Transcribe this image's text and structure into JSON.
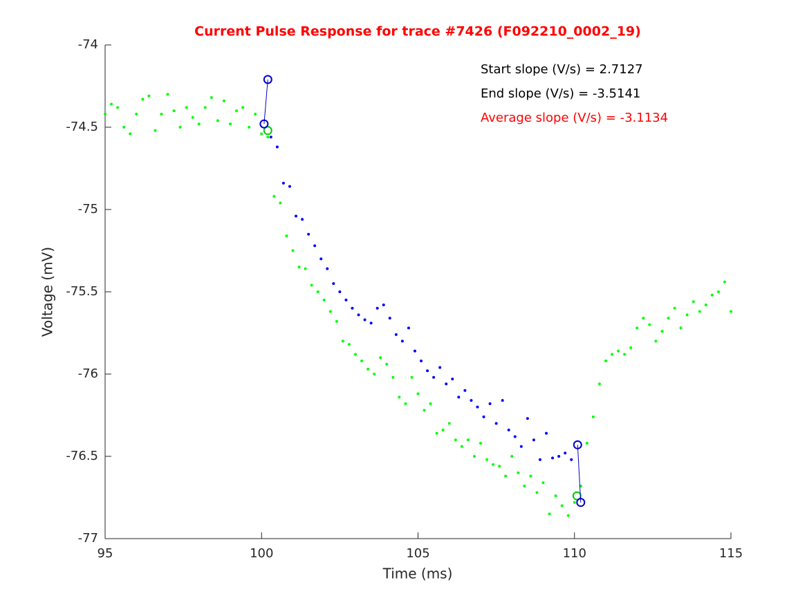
{
  "chart_data": {
    "type": "scatter",
    "title": "Current Pulse Response for trace #7426 (F092210_0002_19)",
    "title_color": "#ff0000",
    "x_label": "Time (ms)",
    "y_label": "Voltage (mV)",
    "xlim": [
      95,
      115
    ],
    "ylim": [
      -77,
      -74
    ],
    "xticks": [
      95,
      100,
      105,
      110,
      115
    ],
    "yticks": [
      -77,
      -76.5,
      -76,
      -75.5,
      -75,
      -74.5,
      -74
    ],
    "annotations": [
      {
        "text": "Start slope (V/s) = 2.7127",
        "color": "#000000"
      },
      {
        "text": "End slope (V/s) = -3.5141",
        "color": "#000000"
      },
      {
        "text": "Average slope (V/s) = -3.1134",
        "color": "#ff0000"
      }
    ],
    "series": [
      {
        "color": "#00ff00",
        "marker": "dot",
        "x": [
          95.0,
          95.2,
          95.4,
          95.6,
          95.8,
          96.0,
          96.2,
          96.4,
          96.6,
          96.8,
          97.0,
          97.2,
          97.4,
          97.6,
          97.8,
          98.0,
          98.2,
          98.4,
          98.6,
          98.8,
          99.0,
          99.2,
          99.4,
          99.6,
          99.8,
          100.0,
          100.2,
          100.4,
          100.6,
          100.8,
          101.0,
          101.2,
          101.4,
          101.6,
          101.8,
          102.0,
          102.2,
          102.4,
          102.6,
          102.8,
          103.0,
          103.2,
          103.4,
          103.6,
          103.8,
          104.0,
          104.2,
          104.4,
          104.6,
          104.8,
          105.0,
          105.2,
          105.4,
          105.6,
          105.8,
          106.0,
          106.2,
          106.4,
          106.6,
          106.8,
          107.0,
          107.2,
          107.4,
          107.6,
          107.8,
          108.0,
          108.2,
          108.4,
          108.6,
          108.8,
          109.0,
          109.2,
          109.4,
          109.6,
          109.8,
          110.0,
          110.2,
          110.4,
          110.6,
          110.8,
          111.0,
          111.2,
          111.4,
          111.6,
          111.8,
          112.0,
          112.2,
          112.4,
          112.6,
          112.8,
          113.0,
          113.2,
          113.4,
          113.6,
          113.8,
          114.0,
          114.2,
          114.4,
          114.6,
          114.8,
          115.0
        ],
        "values": [
          -74.42,
          -74.36,
          -74.38,
          -74.5,
          -74.54,
          -74.42,
          -74.33,
          -74.31,
          -74.52,
          -74.42,
          -74.3,
          -74.4,
          -74.5,
          -74.38,
          -74.44,
          -74.48,
          -74.38,
          -74.32,
          -74.46,
          -74.34,
          -74.48,
          -74.4,
          -74.38,
          -74.5,
          -74.42,
          -74.54,
          -74.56,
          -74.92,
          -74.96,
          -75.16,
          -75.25,
          -75.35,
          -75.36,
          -75.46,
          -75.5,
          -75.55,
          -75.62,
          -75.68,
          -75.8,
          -75.82,
          -75.88,
          -75.92,
          -75.97,
          -76.0,
          -75.9,
          -75.94,
          -76.02,
          -76.14,
          -76.18,
          -76.02,
          -76.12,
          -76.22,
          -76.18,
          -76.36,
          -76.34,
          -76.3,
          -76.4,
          -76.44,
          -76.4,
          -76.5,
          -76.42,
          -76.52,
          -76.55,
          -76.56,
          -76.62,
          -76.5,
          -76.6,
          -76.68,
          -76.62,
          -76.72,
          -76.66,
          -76.85,
          -76.74,
          -76.8,
          -76.86,
          -76.78,
          -76.68,
          -76.42,
          -76.26,
          -76.06,
          -75.92,
          -75.88,
          -75.86,
          -75.88,
          -75.84,
          -75.72,
          -75.66,
          -75.7,
          -75.8,
          -75.74,
          -75.66,
          -75.6,
          -75.72,
          -75.64,
          -75.56,
          -75.62,
          -75.58,
          -75.52,
          -75.5,
          -75.44,
          -75.62
        ]
      },
      {
        "color": "#0000ff",
        "marker": "dot",
        "x": [
          100.3,
          100.5,
          100.7,
          100.9,
          101.1,
          101.3,
          101.5,
          101.7,
          101.9,
          102.1,
          102.3,
          102.5,
          102.7,
          102.9,
          103.1,
          103.3,
          103.5,
          103.7,
          103.9,
          104.1,
          104.3,
          104.5,
          104.7,
          104.9,
          105.1,
          105.3,
          105.5,
          105.7,
          105.9,
          106.1,
          106.3,
          106.5,
          106.7,
          106.9,
          107.1,
          107.3,
          107.5,
          107.7,
          107.9,
          108.1,
          108.3,
          108.5,
          108.7,
          108.9,
          109.1,
          109.3,
          109.5,
          109.7,
          109.9
        ],
        "values": [
          -74.56,
          -74.62,
          -74.84,
          -74.86,
          -75.04,
          -75.06,
          -75.15,
          -75.22,
          -75.3,
          -75.36,
          -75.45,
          -75.5,
          -75.55,
          -75.6,
          -75.64,
          -75.67,
          -75.69,
          -75.6,
          -75.58,
          -75.66,
          -75.76,
          -75.8,
          -75.72,
          -75.86,
          -75.92,
          -75.98,
          -76.02,
          -75.96,
          -76.06,
          -76.03,
          -76.14,
          -76.1,
          -76.16,
          -76.2,
          -76.26,
          -76.18,
          -76.3,
          -76.16,
          -76.34,
          -76.38,
          -76.44,
          -76.27,
          -76.4,
          -76.52,
          -76.36,
          -76.51,
          -76.5,
          -76.48,
          -76.52
        ]
      },
      {
        "color": "#00cc00",
        "marker": "circle",
        "x": [
          100.2,
          110.08
        ],
        "values": [
          -74.52,
          -76.74
        ]
      },
      {
        "color": "#0000cc",
        "marker": "circle",
        "line": true,
        "x": [
          100.08,
          100.2
        ],
        "values": [
          -74.48,
          -74.21
        ]
      },
      {
        "color": "#0000cc",
        "marker": "circle",
        "line": true,
        "x": [
          110.1,
          110.2
        ],
        "values": [
          -76.43,
          -76.78
        ]
      }
    ]
  }
}
